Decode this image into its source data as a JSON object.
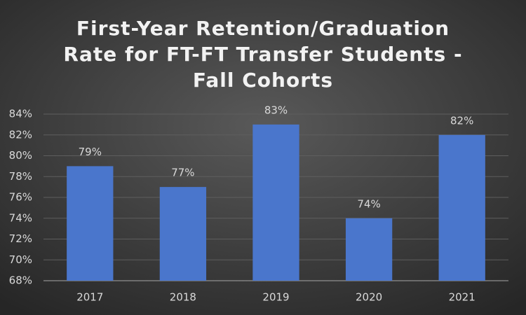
{
  "chart_data": {
    "type": "bar",
    "title": [
      "First-Year Retention/Graduation",
      "Rate for FT-FT Transfer Students -",
      "Fall Cohorts"
    ],
    "categories": [
      "2017",
      "2018",
      "2019",
      "2020",
      "2021"
    ],
    "values": [
      79,
      77,
      83,
      74,
      82
    ],
    "value_labels": [
      "79%",
      "77%",
      "83%",
      "74%",
      "82%"
    ],
    "color": "#4a76cc",
    "ylim": [
      68,
      84
    ],
    "yticks": [
      {
        "value": 68,
        "label": "68%"
      },
      {
        "value": 70,
        "label": "70%"
      },
      {
        "value": 72,
        "label": "72%"
      },
      {
        "value": 74,
        "label": "74%"
      },
      {
        "value": 76,
        "label": "76%"
      },
      {
        "value": 78,
        "label": "78%"
      },
      {
        "value": 80,
        "label": "80%"
      },
      {
        "value": 82,
        "label": "82%"
      },
      {
        "value": 84,
        "label": "84%"
      }
    ],
    "grid": true
  }
}
